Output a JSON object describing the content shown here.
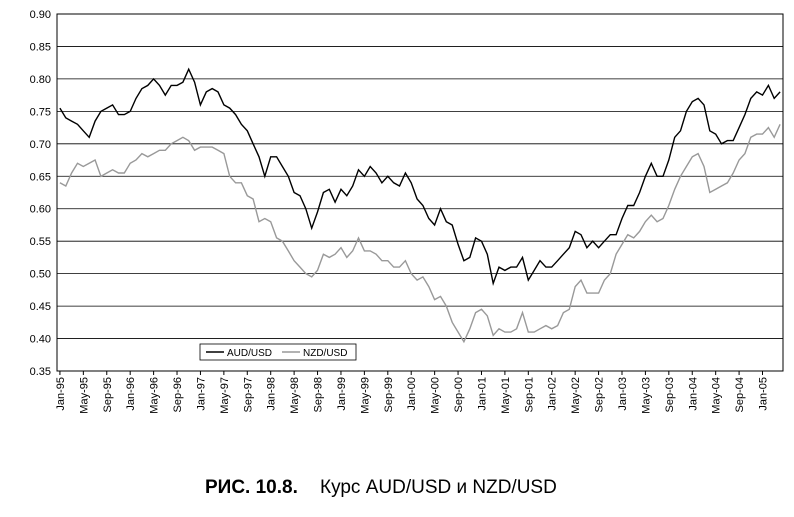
{
  "chart_data": {
    "type": "line",
    "figure_label": "РИС. 10.8.",
    "title": "Курс AUD/USD и NZD/USD",
    "categories": [
      "Jan-95",
      null,
      null,
      null,
      "May-95",
      null,
      null,
      null,
      "Sep-95",
      null,
      null,
      null,
      "Jan-96",
      null,
      null,
      null,
      "May-96",
      null,
      null,
      null,
      "Sep-96",
      null,
      null,
      null,
      "Jan-97",
      null,
      null,
      null,
      "May-97",
      null,
      null,
      null,
      "Sep-97",
      null,
      null,
      null,
      "Jan-98",
      null,
      null,
      null,
      "May-98",
      null,
      null,
      null,
      "Sep-98",
      null,
      null,
      null,
      "Jan-99",
      null,
      null,
      null,
      "May-99",
      null,
      null,
      null,
      "Sep-99",
      null,
      null,
      null,
      "Jan-00",
      null,
      null,
      null,
      "May-00",
      null,
      null,
      null,
      "Sep-00",
      null,
      null,
      null,
      "Jan-01",
      null,
      null,
      null,
      "May-01",
      null,
      null,
      null,
      "Sep-01",
      null,
      null,
      null,
      "Jan-02",
      null,
      null,
      null,
      "May-02",
      null,
      null,
      null,
      "Sep-02",
      null,
      null,
      null,
      "Jan-03",
      null,
      null,
      null,
      "May-03",
      null,
      null,
      null,
      "Sep-03",
      null,
      null,
      null,
      "Jan-04",
      null,
      null,
      null,
      "May-04",
      null,
      null,
      null,
      "Sep-04",
      null,
      null,
      null,
      "Jan-05",
      null,
      null,
      null
    ],
    "series": [
      {
        "name": "AUD/USD",
        "color": "#000000",
        "values": [
          0.755,
          0.74,
          0.735,
          0.73,
          0.72,
          0.71,
          0.735,
          0.75,
          0.755,
          0.76,
          0.745,
          0.745,
          0.75,
          0.77,
          0.785,
          0.79,
          0.8,
          0.79,
          0.775,
          0.79,
          0.79,
          0.795,
          0.815,
          0.795,
          0.76,
          0.78,
          0.785,
          0.78,
          0.76,
          0.755,
          0.745,
          0.73,
          0.72,
          0.7,
          0.68,
          0.65,
          0.68,
          0.68,
          0.665,
          0.65,
          0.625,
          0.62,
          0.6,
          0.57,
          0.595,
          0.625,
          0.63,
          0.61,
          0.63,
          0.62,
          0.635,
          0.66,
          0.65,
          0.665,
          0.655,
          0.64,
          0.65,
          0.64,
          0.635,
          0.655,
          0.64,
          0.615,
          0.605,
          0.585,
          0.575,
          0.6,
          0.58,
          0.575,
          0.545,
          0.52,
          0.525,
          0.555,
          0.55,
          0.53,
          0.485,
          0.51,
          0.505,
          0.51,
          0.51,
          0.525,
          0.49,
          0.505,
          0.52,
          0.51,
          0.51,
          0.52,
          0.53,
          0.54,
          0.565,
          0.56,
          0.54,
          0.55,
          0.54,
          0.55,
          0.56,
          0.56,
          0.585,
          0.605,
          0.605,
          0.625,
          0.65,
          0.67,
          0.65,
          0.65,
          0.675,
          0.71,
          0.72,
          0.75,
          0.765,
          0.77,
          0.76,
          0.72,
          0.715,
          0.7,
          0.705,
          0.705,
          0.725,
          0.745,
          0.77,
          0.78,
          0.775,
          0.79,
          0.77,
          0.78
        ]
      },
      {
        "name": "NZD/USD",
        "color": "#999999",
        "values": [
          0.64,
          0.635,
          0.655,
          0.67,
          0.665,
          0.67,
          0.675,
          0.65,
          0.655,
          0.66,
          0.655,
          0.655,
          0.67,
          0.675,
          0.685,
          0.68,
          0.685,
          0.69,
          0.69,
          0.7,
          0.705,
          0.71,
          0.705,
          0.69,
          0.695,
          0.695,
          0.695,
          0.69,
          0.685,
          0.65,
          0.64,
          0.64,
          0.62,
          0.615,
          0.58,
          0.585,
          0.58,
          0.555,
          0.55,
          0.535,
          0.52,
          0.51,
          0.5,
          0.495,
          0.505,
          0.53,
          0.525,
          0.53,
          0.54,
          0.525,
          0.535,
          0.555,
          0.535,
          0.535,
          0.53,
          0.52,
          0.52,
          0.51,
          0.51,
          0.52,
          0.5,
          0.49,
          0.495,
          0.48,
          0.46,
          0.465,
          0.45,
          0.425,
          0.41,
          0.395,
          0.415,
          0.44,
          0.445,
          0.435,
          0.405,
          0.415,
          0.41,
          0.41,
          0.415,
          0.44,
          0.41,
          0.41,
          0.415,
          0.42,
          0.415,
          0.42,
          0.44,
          0.445,
          0.48,
          0.49,
          0.47,
          0.47,
          0.47,
          0.49,
          0.5,
          0.53,
          0.545,
          0.56,
          0.555,
          0.565,
          0.58,
          0.59,
          0.58,
          0.585,
          0.605,
          0.63,
          0.65,
          0.665,
          0.68,
          0.685,
          0.665,
          0.625,
          0.63,
          0.635,
          0.64,
          0.655,
          0.675,
          0.685,
          0.71,
          0.715,
          0.715,
          0.725,
          0.71,
          0.73
        ]
      }
    ],
    "ylim": [
      0.35,
      0.9
    ],
    "yticks": [
      0.35,
      {
        "value": 0.4,
        "label": "0.40"
      },
      0.45,
      {
        "value": 0.5,
        "label": "0.50"
      },
      0.55,
      {
        "value": 0.6,
        "label": "0.60"
      },
      0.65,
      {
        "value": 0.7,
        "label": "0.70"
      },
      0.75,
      {
        "value": 0.8,
        "label": "0.80"
      },
      0.85,
      {
        "value": 0.9,
        "label": "0.90"
      }
    ],
    "grid": true,
    "legend": "lower-left"
  }
}
